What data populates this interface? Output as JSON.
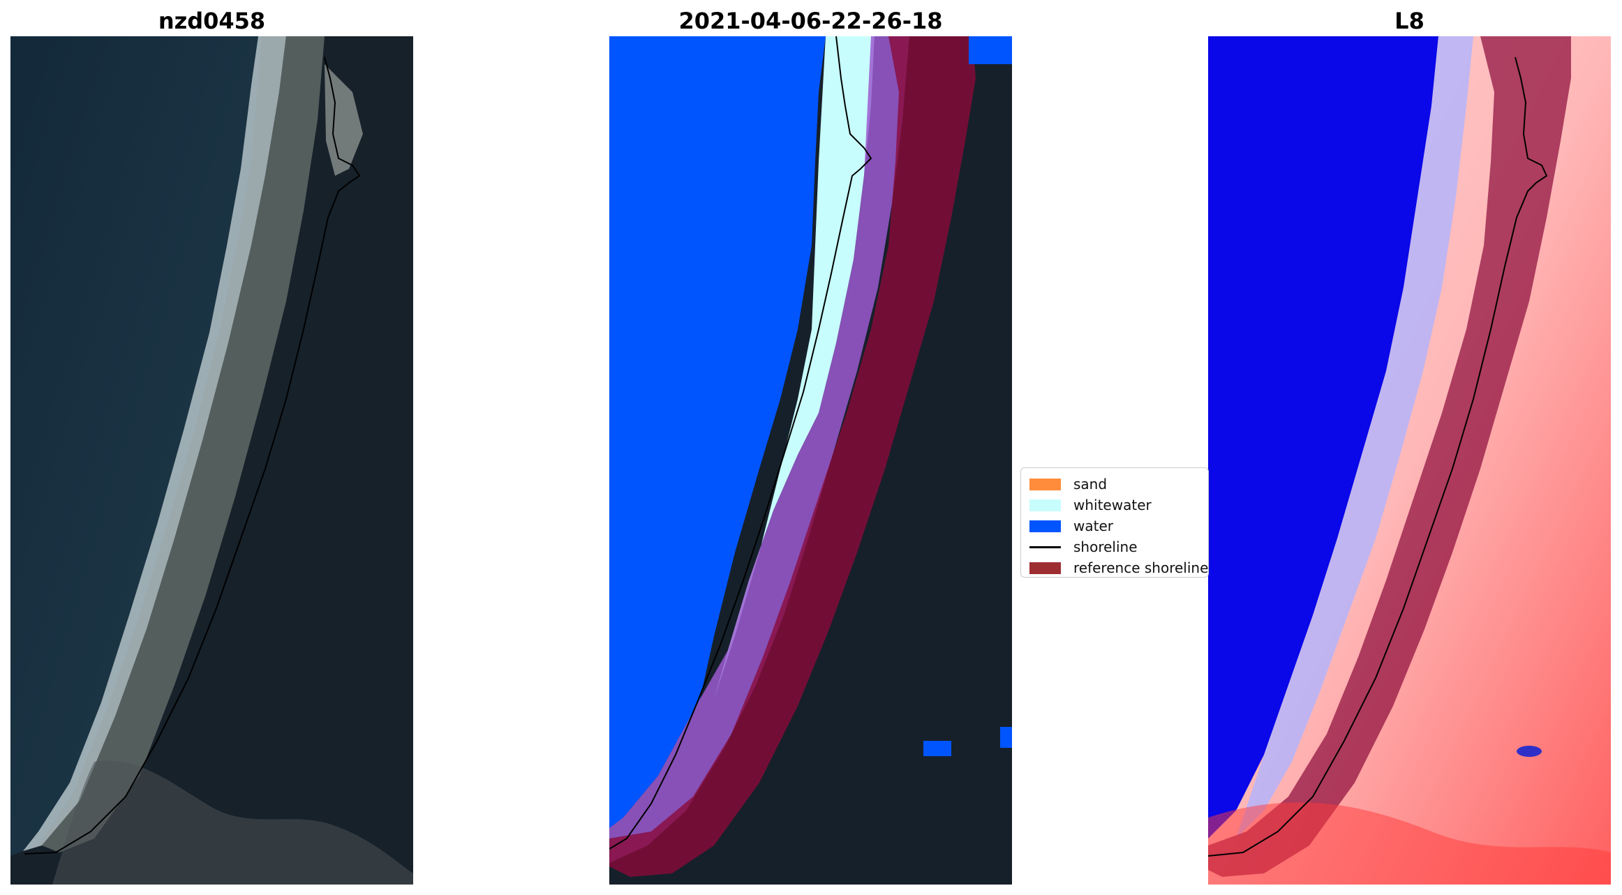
{
  "panels": [
    {
      "title": "nzd0458",
      "kind": "rgb-image"
    },
    {
      "title": "2021-04-06-22-26-18",
      "kind": "classified-image"
    },
    {
      "title": "L8",
      "kind": "index-image"
    }
  ],
  "legend": {
    "entries": [
      {
        "label": "sand",
        "color": "#ff8c3a",
        "style": "patch"
      },
      {
        "label": "whitewater",
        "color": "#c8fdfd",
        "style": "patch"
      },
      {
        "label": "water",
        "color": "#0055ff",
        "style": "patch"
      },
      {
        "label": "shoreline",
        "color": "#000000",
        "style": "line"
      },
      {
        "label": "reference shoreline",
        "color": "#9e2d32",
        "style": "patch"
      }
    ]
  },
  "colors": {
    "ocean": "#152a3a",
    "land": "#17212b",
    "water_class": "#0055ff",
    "whitewater_class": "#c8fdfd",
    "reference_buffer": "#8a0a3a",
    "index_blue": "#0a07e8",
    "index_red": "#ff3030"
  }
}
